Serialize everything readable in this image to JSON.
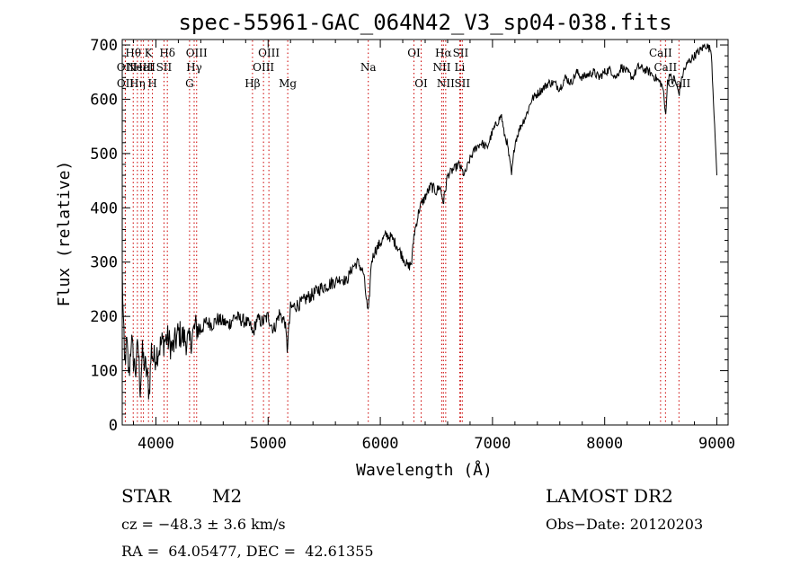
{
  "chart_data": {
    "type": "line",
    "title": "spec-55961-GAC_064N42_V3_sp04-038.fits",
    "xlabel": "Wavelength (Å)",
    "ylabel": "Flux (relative)",
    "xlim": [
      3700,
      9100
    ],
    "ylim": [
      0,
      710
    ],
    "xticks": [
      4000,
      5000,
      6000,
      7000,
      8000,
      9000
    ],
    "yticks": [
      0,
      100,
      200,
      300,
      400,
      500,
      600,
      700
    ],
    "grid": false,
    "series": [
      {
        "x": [
          3700,
          3720,
          3740,
          3760,
          3780,
          3800,
          3820,
          3840,
          3860,
          3880,
          3900,
          3920,
          3940,
          3960,
          3980,
          4000,
          4050,
          4100,
          4150,
          4200,
          4250,
          4300,
          4350,
          4400,
          4450,
          4500,
          4550,
          4600,
          4650,
          4700,
          4750,
          4800,
          4850,
          4861,
          4900,
          4950,
          5000,
          5050,
          5100,
          5150,
          5170,
          5200,
          5250,
          5300,
          5350,
          5400,
          5450,
          5500,
          5550,
          5600,
          5650,
          5700,
          5750,
          5800,
          5850,
          5893,
          5920,
          5950,
          6000,
          6050,
          6100,
          6150,
          6200,
          6250,
          6280,
          6300,
          6320,
          6350,
          6400,
          6450,
          6500,
          6530,
          6563,
          6600,
          6650,
          6700,
          6750,
          6800,
          6850,
          6900,
          6950,
          7000,
          7050,
          7080,
          7100,
          7130,
          7150,
          7170,
          7200,
          7250,
          7300,
          7350,
          7400,
          7450,
          7500,
          7550,
          7600,
          7650,
          7700,
          7750,
          7800,
          7850,
          7900,
          7950,
          8000,
          8050,
          8100,
          8150,
          8200,
          8250,
          8300,
          8350,
          8400,
          8450,
          8498,
          8520,
          8542,
          8560,
          8580,
          8600,
          8620,
          8662,
          8700,
          8750,
          8800,
          8850,
          8900,
          8950,
          9000
        ],
        "y": [
          280,
          110,
          150,
          90,
          160,
          120,
          100,
          150,
          70,
          130,
          110,
          95,
          60,
          140,
          120,
          130,
          150,
          160,
          140,
          170,
          160,
          150,
          180,
          175,
          190,
          185,
          195,
          190,
          185,
          200,
          195,
          190,
          180,
          165,
          195,
          190,
          200,
          175,
          205,
          190,
          140,
          215,
          220,
          225,
          235,
          240,
          250,
          255,
          260,
          265,
          270,
          265,
          290,
          300,
          280,
          200,
          300,
          320,
          335,
          350,
          345,
          330,
          310,
          290,
          300,
          350,
          370,
          400,
          420,
          440,
          430,
          440,
          410,
          460,
          470,
          480,
          460,
          490,
          510,
          520,
          510,
          540,
          560,
          570,
          540,
          520,
          490,
          460,
          520,
          550,
          570,
          600,
          610,
          620,
          630,
          630,
          620,
          640,
          630,
          650,
          640,
          645,
          650,
          640,
          650,
          655,
          640,
          660,
          650,
          640,
          660,
          655,
          650,
          640,
          630,
          620,
          570,
          630,
          650,
          630,
          640,
          610,
          650,
          670,
          680,
          690,
          700,
          690,
          460
        ]
      }
    ],
    "lines": [
      {
        "wl": 3727,
        "label": "OII",
        "row": 2
      },
      {
        "wl": 3728,
        "label": "OII",
        "row": 3
      },
      {
        "wl": 3798,
        "label": "Hθ",
        "row": 1
      },
      {
        "wl": 3835,
        "label": "Hη",
        "row": 3
      },
      {
        "wl": 3869,
        "label": "NeIII",
        "row": 2
      },
      {
        "wl": 3889,
        "label": "HeI",
        "row": 2
      },
      {
        "wl": 3934,
        "label": "K",
        "row": 1
      },
      {
        "wl": 3969,
        "label": "H",
        "row": 3
      },
      {
        "wl": 4072,
        "label": "SII",
        "row": 2
      },
      {
        "wl": 4102,
        "label": "Hδ",
        "row": 1
      },
      {
        "wl": 4300,
        "label": "G",
        "row": 3
      },
      {
        "wl": 4341,
        "label": "Hγ",
        "row": 2
      },
      {
        "wl": 4363,
        "label": "OIII",
        "row": 1
      },
      {
        "wl": 4861,
        "label": "Hβ",
        "row": 3
      },
      {
        "wl": 4959,
        "label": "OIII",
        "row": 2
      },
      {
        "wl": 5007,
        "label": "OIII",
        "row": 1
      },
      {
        "wl": 5175,
        "label": "Mg",
        "row": 3
      },
      {
        "wl": 5893,
        "label": "Na",
        "row": 2
      },
      {
        "wl": 6300,
        "label": "OI",
        "row": 1
      },
      {
        "wl": 6364,
        "label": "OI",
        "row": 3
      },
      {
        "wl": 6548,
        "label": "NII",
        "row": 2
      },
      {
        "wl": 6563,
        "label": "Hα",
        "row": 1
      },
      {
        "wl": 6583,
        "label": "NII",
        "row": 3
      },
      {
        "wl": 6708,
        "label": "Li",
        "row": 2
      },
      {
        "wl": 6716,
        "label": "SII",
        "row": 1
      },
      {
        "wl": 6731,
        "label": "SII",
        "row": 3
      },
      {
        "wl": 8498,
        "label": "CaII",
        "row": 1
      },
      {
        "wl": 8542,
        "label": "CaII",
        "row": 2
      },
      {
        "wl": 8662,
        "label": "CaII",
        "row": 3
      }
    ]
  },
  "info": {
    "obj_class": "STAR",
    "obj_subclass": "M2",
    "survey": "LAMOST DR2",
    "cz": "cz = −48.3 ± 3.6 km/s",
    "obs_date": "Obs−Date: 20120203",
    "radec": "RA =  64.05477, DEC =  42.61355"
  }
}
